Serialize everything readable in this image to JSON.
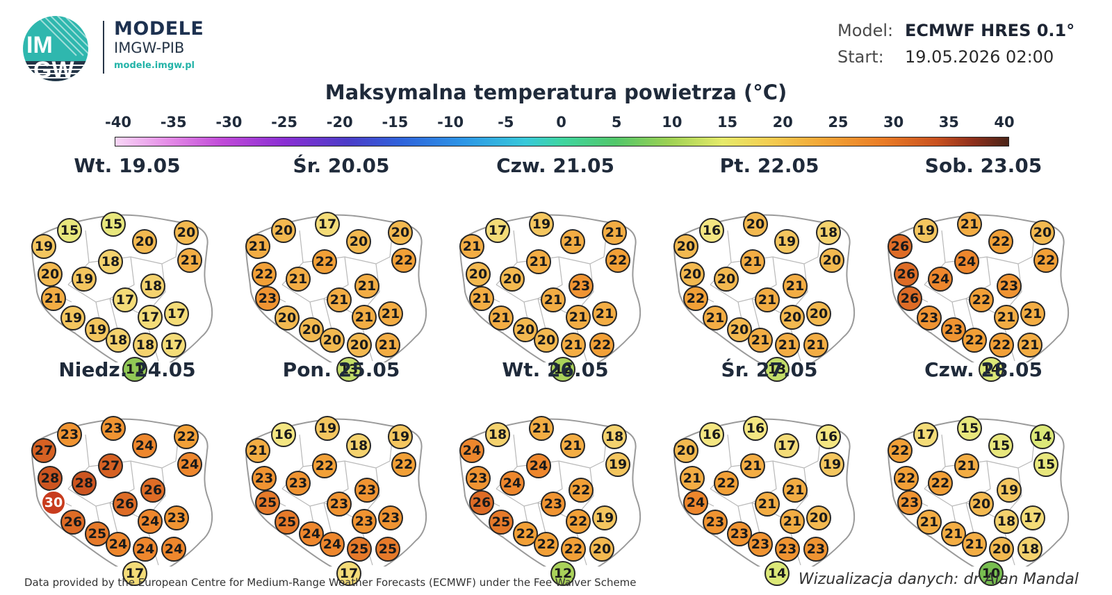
{
  "header": {
    "logo_text_top": "IM",
    "logo_text_bottom": "GW",
    "brand_name": "MODELE",
    "brand_org": "IMGW-PIB",
    "brand_url": "modele.imgw.pl",
    "model_label": "Model:",
    "model_value": "ECMWF HRES 0.1°",
    "start_label": "Start:",
    "start_value": "19.05.2026 02:00"
  },
  "title": "Maksymalna temperatura powietrza (°C)",
  "scale": {
    "ticks": [
      "-40",
      "-35",
      "-30",
      "-25",
      "-20",
      "-15",
      "-10",
      "-5",
      "0",
      "5",
      "10",
      "15",
      "20",
      "25",
      "30",
      "35",
      "40"
    ],
    "colors": {
      "cold": "#e48be6",
      "zero": "#3fd5a0",
      "warm": "#f2a737",
      "hot": "#4a2418"
    }
  },
  "panels": [
    {
      "date": "Wt. 19.05",
      "values": [
        15,
        15,
        19,
        20,
        20,
        18,
        21,
        20,
        19,
        18,
        21,
        17,
        17,
        19,
        17,
        19,
        18,
        18,
        17,
        11
      ]
    },
    {
      "date": "Śr. 20.05",
      "values": [
        20,
        17,
        21,
        20,
        20,
        22,
        22,
        22,
        21,
        21,
        23,
        21,
        21,
        20,
        21,
        20,
        20,
        20,
        21,
        13
      ]
    },
    {
      "date": "Czw. 21.05",
      "values": [
        17,
        19,
        21,
        21,
        21,
        21,
        22,
        20,
        20,
        23,
        21,
        21,
        21,
        21,
        21,
        20,
        20,
        21,
        22,
        12
      ]
    },
    {
      "date": "Pt. 22.05",
      "values": [
        16,
        20,
        20,
        19,
        18,
        21,
        20,
        20,
        20,
        21,
        22,
        21,
        20,
        21,
        20,
        20,
        21,
        21,
        21,
        13
      ]
    },
    {
      "date": "Sob. 23.05",
      "values": [
        19,
        21,
        26,
        22,
        20,
        24,
        22,
        26,
        24,
        23,
        26,
        22,
        21,
        23,
        21,
        23,
        22,
        22,
        21,
        14
      ]
    },
    {
      "date": "Niedz. 24.05",
      "values": [
        23,
        23,
        27,
        24,
        22,
        27,
        24,
        28,
        28,
        26,
        30,
        26,
        24,
        26,
        23,
        25,
        24,
        24,
        24,
        17
      ]
    },
    {
      "date": "Pon. 25.05",
      "values": [
        16,
        19,
        21,
        18,
        19,
        22,
        22,
        23,
        23,
        23,
        25,
        23,
        23,
        25,
        23,
        24,
        24,
        25,
        25,
        17
      ]
    },
    {
      "date": "Wt. 26.05",
      "values": [
        18,
        21,
        24,
        21,
        18,
        24,
        19,
        23,
        24,
        22,
        26,
        23,
        22,
        25,
        19,
        22,
        22,
        22,
        20,
        12
      ]
    },
    {
      "date": "Śr. 27.05",
      "values": [
        16,
        16,
        20,
        17,
        16,
        21,
        19,
        21,
        22,
        21,
        24,
        21,
        21,
        23,
        20,
        23,
        23,
        23,
        23,
        14
      ]
    },
    {
      "date": "Czw. 28.05",
      "values": [
        17,
        15,
        22,
        15,
        14,
        21,
        15,
        22,
        22,
        19,
        23,
        20,
        18,
        21,
        17,
        21,
        21,
        20,
        18,
        10
      ]
    }
  ],
  "footer": {
    "source": "Data provided by the European Centre for Medium-Range Weather Forecasts (ECMWF) under the Fee Waiver Scheme",
    "author": "Wizualizacja danych: dr Alan Mandal"
  }
}
